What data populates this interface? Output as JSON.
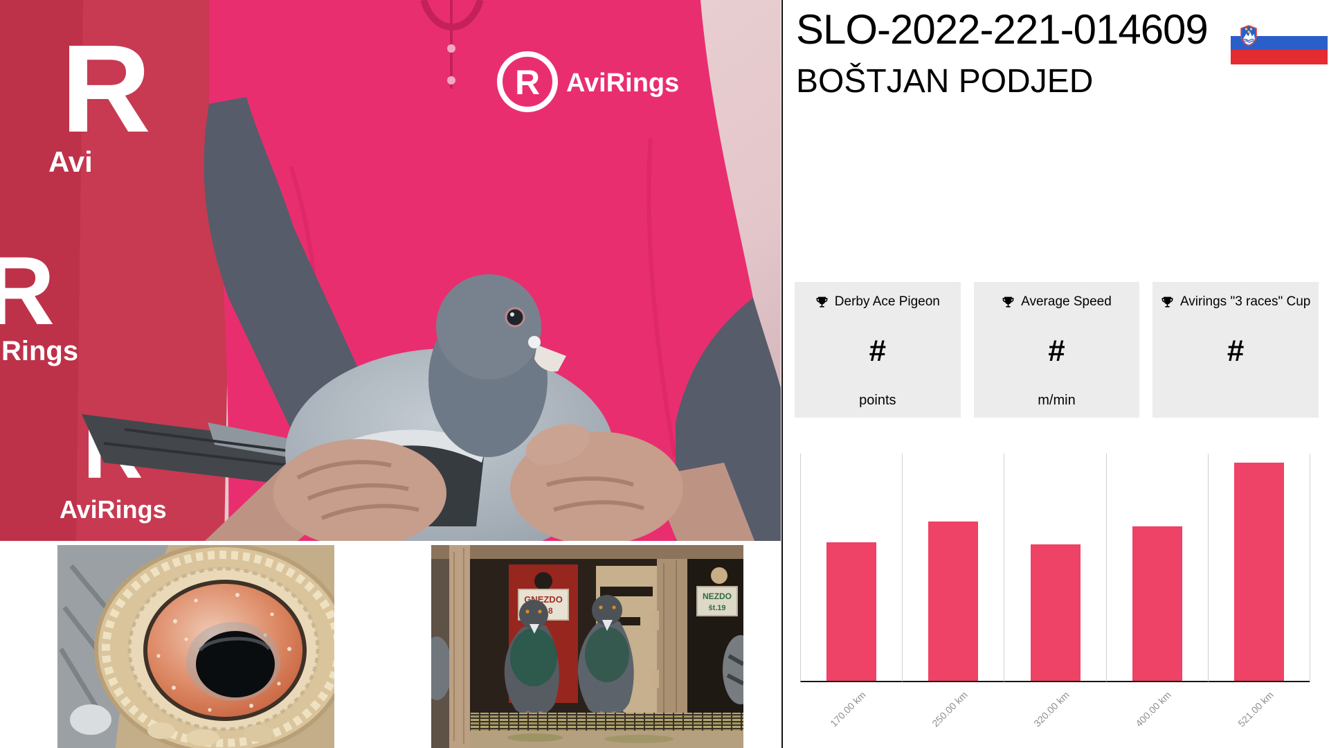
{
  "header": {
    "ring_number": "SLO-2022-221-014609",
    "owner_name": "BOŠTJAN PODJED"
  },
  "flag": {
    "country": "Slovenia",
    "white": "#ffffff",
    "blue": "#2a5fc9",
    "red": "#e52b32"
  },
  "awards": [
    {
      "label": "Derby Ace Pigeon",
      "value": "#",
      "unit": "points"
    },
    {
      "label": "Average Speed",
      "value": "#",
      "unit": "m/min"
    },
    {
      "label": "Avirings \"3 races\" Cup",
      "value": "#",
      "unit": ""
    }
  ],
  "chart_data": {
    "type": "bar",
    "categories": [
      "170.00 km",
      "250.00 km",
      "320.00 km",
      "400.00 km",
      "521.00 km"
    ],
    "values": [
      61,
      70,
      60,
      68,
      96
    ],
    "ylim": [
      0,
      100
    ],
    "title": "",
    "xlabel": "",
    "ylabel": "",
    "bar_color": "#ee4266",
    "gridline_color": "#cfcfcf",
    "baseline_color": "#141414",
    "label_color": "#8f8f8f",
    "grid": "vertical-gridlines-only",
    "legend": "none",
    "note": "no y-axis ticks visible; values estimated as percent of plot height"
  },
  "photos": {
    "main": {
      "brand": "AviRings",
      "banner_fragments": {
        "r1": "R",
        "avi": "Avi",
        "rings": "Rings",
        "avir": "AviR",
        "avirings": "AviRings"
      }
    },
    "loft": {
      "sign1_line1": "GNEZDO",
      "sign1_line2": "št.18",
      "sign2_line1": "NEZDO",
      "sign2_line2": "št.19"
    }
  }
}
